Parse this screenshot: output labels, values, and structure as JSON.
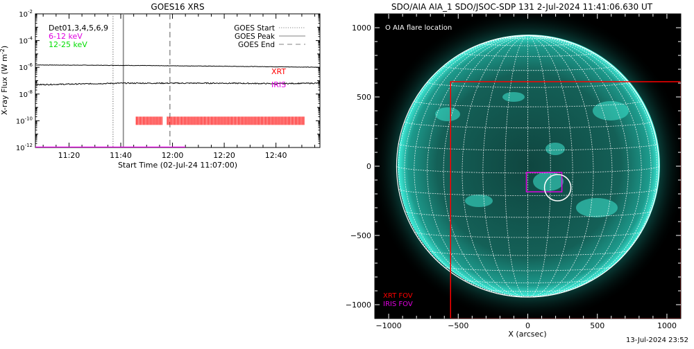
{
  "stamp": "13-Jul-2024 23:52",
  "left_panel": {
    "title": "GOES16 XRS",
    "ylabel": "X-ray Flux (W m",
    "ylabel_sup": "-2",
    "ylabel_end": ")",
    "xlabel": "Start Time (02-Jul-24 11:07:00)",
    "ytick_exponents": [
      "-2",
      "-4",
      "-6",
      "-8",
      "-10",
      "-12"
    ],
    "xtick_labels": [
      "11:20",
      "11:40",
      "12:00",
      "12:20",
      "12:40"
    ],
    "legend_left": [
      {
        "text": "Det01,3,4,5,6,9",
        "color": "#000000"
      },
      {
        "text": "6-12 keV",
        "color": "#e000e0"
      },
      {
        "text": "12-25 keV",
        "color": "#00dd00"
      }
    ],
    "legend_right": [
      {
        "text": "GOES Start",
        "style": "dotted"
      },
      {
        "text": "GOES Peak",
        "style": "solid"
      },
      {
        "text": "GOES End",
        "style": "dashed"
      }
    ],
    "markers": {
      "xrt": "XRT",
      "iris": "IRIS"
    },
    "colors": {
      "xrt": "#ff0000",
      "iris": "#e000e0",
      "flux": "#000000"
    }
  },
  "chart_data": {
    "type": "line",
    "title": "GOES16 XRS",
    "xlabel": "Start Time (02-Jul-24 11:07:00)",
    "ylabel": "X-ray Flux (W m^-2)",
    "yscale": "log",
    "ylim": [
      1e-12,
      0.01
    ],
    "xlim": [
      "11:07",
      "12:57"
    ],
    "x_ticks": [
      "11:20",
      "11:40",
      "12:00",
      "12:20",
      "12:40"
    ],
    "series": [
      {
        "x": [
          "11:07",
          "11:40",
          "12:00",
          "12:20",
          "12:40",
          "12:57"
        ],
        "values": [
          1.5e-06,
          1.4e-06,
          1.3e-06,
          1.2e-06,
          1.1e-06,
          1e-06
        ]
      },
      {
        "x": [
          "11:07",
          "11:20",
          "11:40",
          "12:00",
          "12:20",
          "12:40",
          "12:57"
        ],
        "values": [
          5e-08,
          5.5e-08,
          6.5e-08,
          6.5e-08,
          6.5e-08,
          6e-08,
          6.5e-08
        ]
      }
    ],
    "vertical_lines": [
      {
        "name": "GOES Start",
        "x": "11:37",
        "style": "dotted"
      },
      {
        "name": "GOES Peak",
        "x": "11:41",
        "style": "solid"
      },
      {
        "name": "GOES End",
        "x": "11:59",
        "style": "dashed"
      }
    ],
    "coverage": [
      {
        "name": "XRT",
        "y": 1e-10,
        "intervals": [
          [
            "11:46",
            "11:56"
          ],
          [
            "11:58",
            "12:51"
          ]
        ]
      },
      {
        "name": "IRIS",
        "y": 1e-12,
        "intervals": [
          [
            "11:07",
            "12:05"
          ]
        ]
      }
    ],
    "legend_position": "top"
  },
  "right_panel": {
    "title": "SDO/AIA AIA_1 SDO/JSOC-SDP 131  2-Jul-2024 11:41:06.630 UT",
    "xlabel": "X (arcsec)",
    "xtick_labels": [
      "−1000",
      "−500",
      "0",
      "500",
      "1000"
    ],
    "ytick_labels": [
      "1000",
      "500",
      "0",
      "−500",
      "−1000"
    ],
    "flare_legend": "O AIA flare location",
    "fov_labels": {
      "xrt": "XRT FOV",
      "iris": "IRIS FOV"
    },
    "colors": {
      "disk": "#1fb3a6",
      "limb": "#2fe0cc",
      "background": "#000000",
      "xrt_fov": "#ff0000",
      "iris_fov": "#e000e0",
      "grid": "#ffffff"
    },
    "map_data": {
      "x_range": [
        -1100,
        1100
      ],
      "y_range": [
        -1100,
        1100
      ],
      "sun_radius": 943,
      "xrt_fov": {
        "x": [
          -555,
          1100
        ],
        "y": [
          -1100,
          610
        ]
      },
      "iris_fov": {
        "x": [
          -10,
          245
        ],
        "y": [
          -185,
          -45
        ]
      },
      "flare": {
        "x": 215,
        "y": -155,
        "r": 95
      }
    }
  }
}
